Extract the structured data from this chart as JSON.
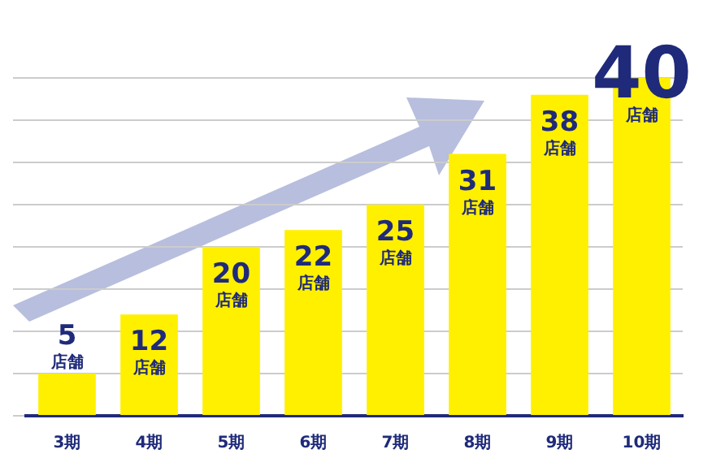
{
  "chart_data": {
    "type": "bar",
    "categories": [
      "3期",
      "4期",
      "5期",
      "6期",
      "7期",
      "8期",
      "9期",
      "10期"
    ],
    "values": [
      5,
      12,
      20,
      22,
      25,
      31,
      38,
      40
    ],
    "value_labels": [
      "5 店舗",
      "12 店舗",
      "20 店舗",
      "22 店舗",
      "25 店舗",
      "31 店舗",
      "38 店舗",
      "40 店舗"
    ],
    "color": "#fff000",
    "grid": "y",
    "tick_labels": "x",
    "legend": false
  }
}
